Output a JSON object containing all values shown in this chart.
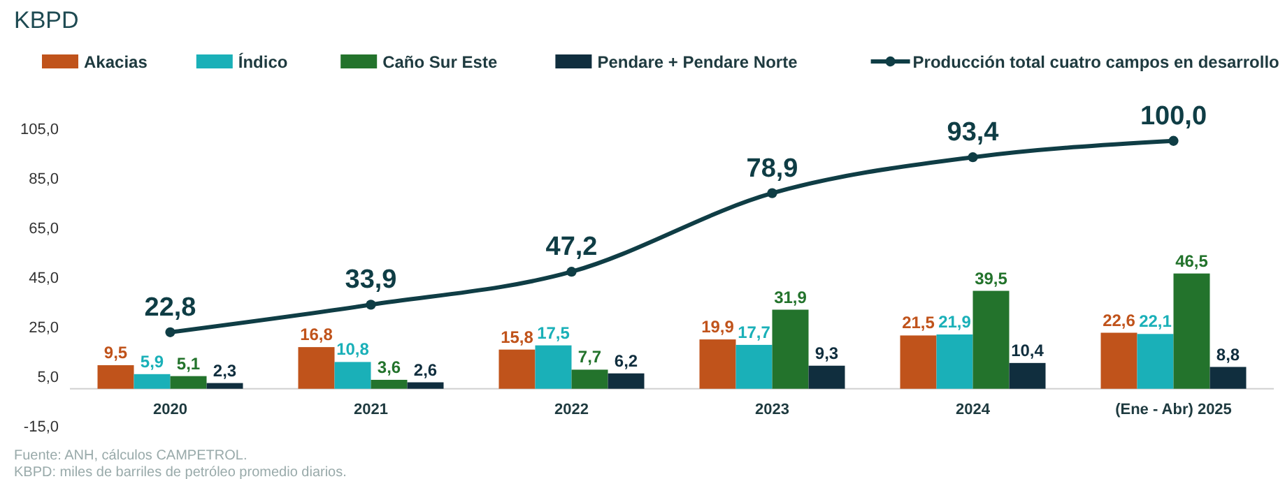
{
  "chart_data": {
    "type": "bar",
    "title": "KBPD",
    "categories": [
      "2020",
      "2021",
      "2022",
      "2023",
      "2024",
      "(Ene - Abr) 2025"
    ],
    "series": [
      {
        "name": "Akacias",
        "color": "#c0531b",
        "values": [
          9.5,
          16.8,
          15.8,
          19.9,
          21.5,
          22.6
        ],
        "value_labels": [
          "9,5",
          "16,8",
          "15,8",
          "19,9",
          "21,5",
          "22,6"
        ]
      },
      {
        "name": "Índico",
        "color": "#1ab0b8",
        "values": [
          5.9,
          10.8,
          17.5,
          17.7,
          21.9,
          22.1
        ],
        "value_labels": [
          "5,9",
          "10,8",
          "17,5",
          "17,7",
          "21,9",
          "22,1"
        ]
      },
      {
        "name": "Caño Sur Este",
        "color": "#23732c",
        "values": [
          5.1,
          3.6,
          7.7,
          31.9,
          39.5,
          46.5
        ],
        "value_labels": [
          "5,1",
          "3,6",
          "7,7",
          "31,9",
          "39,5",
          "46,5"
        ]
      },
      {
        "name": "Pendare + Pendare Norte",
        "color": "#102e3e",
        "values": [
          2.3,
          2.6,
          6.2,
          9.3,
          10.4,
          8.8
        ],
        "value_labels": [
          "2,3",
          "2,6",
          "6,2",
          "9,3",
          "10,4",
          "8,8"
        ]
      },
      {
        "name": "Producción total cuatro campos en desarrollo",
        "type": "line",
        "color": "#0f3d45",
        "values": [
          22.8,
          33.9,
          47.2,
          78.9,
          93.4,
          100.0
        ],
        "value_labels": [
          "22,8",
          "33,9",
          "47,2",
          "78,9",
          "93,4",
          "100,0"
        ]
      }
    ],
    "ylim": [
      -15,
      105
    ],
    "yticks": [
      {
        "value": -15,
        "label": "-15,0"
      },
      {
        "value": 5,
        "label": "5,0"
      },
      {
        "value": 25,
        "label": "25,0"
      },
      {
        "value": 45,
        "label": "45,0"
      },
      {
        "value": 65,
        "label": "65,0"
      },
      {
        "value": 85,
        "label": "85,0"
      },
      {
        "value": 105,
        "label": "105,0"
      }
    ],
    "grid": false,
    "legend": "top",
    "marker": "circle",
    "annotations": [
      "Fuente: ANH, cálculos CAMPETROL.",
      "KBPD: miles de barriles de petróleo promedio diarios."
    ]
  }
}
